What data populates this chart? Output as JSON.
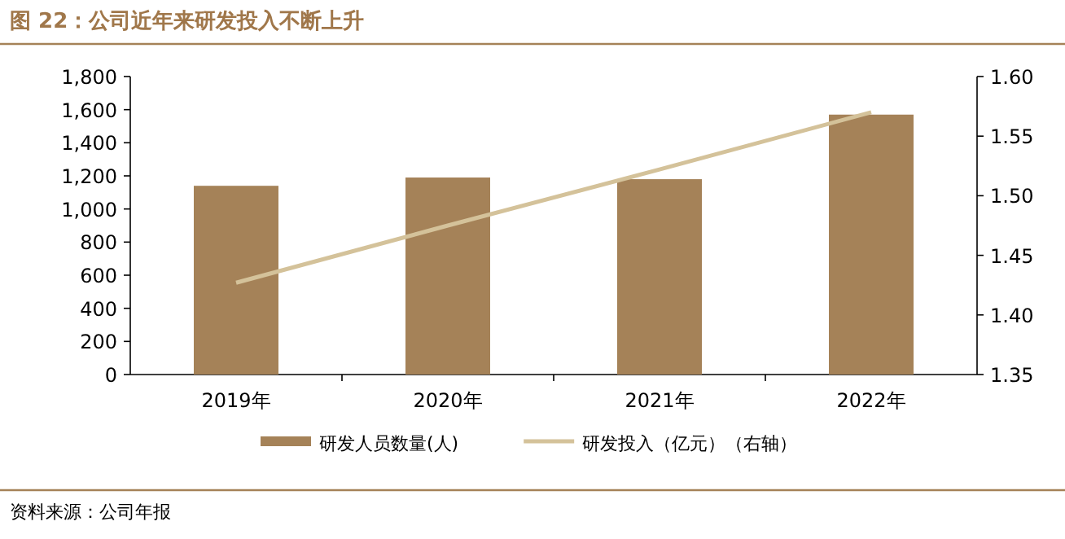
{
  "chart_data": {
    "type": "bar",
    "title": "图 22：公司近年来研发投入不断上升",
    "categories": [
      "2019年",
      "2020年",
      "2021年",
      "2022年"
    ],
    "series": [
      {
        "name": "研发人员数量(人)",
        "color": "#a58258",
        "values": [
          1140,
          1190,
          1180,
          1570
        ]
      },
      {
        "name": "研发投入（亿元）（右轴）",
        "type": "line",
        "color": "#d4c29a",
        "axis": "y2",
        "values": [
          1.427,
          1.475,
          1.522,
          1.57
        ]
      }
    ],
    "ylim": [
      0,
      1800
    ],
    "yticks": [
      {
        "value": 0,
        "label": "0"
      },
      {
        "value": 200,
        "label": "200"
      },
      {
        "value": 400,
        "label": "400"
      },
      {
        "value": 600,
        "label": "600"
      },
      {
        "value": 800,
        "label": "800"
      },
      {
        "value": 1000,
        "label": "1,000"
      },
      {
        "value": 1200,
        "label": "1,200"
      },
      {
        "value": 1400,
        "label": "1,400"
      },
      {
        "value": 1600,
        "label": "1,600"
      },
      {
        "value": 1800,
        "label": "1,800"
      }
    ],
    "y2lim": [
      1.35,
      1.6
    ],
    "y2ticks": [
      {
        "value": 1.35,
        "label": "1.35"
      },
      {
        "value": 1.4,
        "label": "1.40"
      },
      {
        "value": 1.45,
        "label": "1.45"
      },
      {
        "value": 1.5,
        "label": "1.50"
      },
      {
        "value": 1.55,
        "label": "1.55"
      },
      {
        "value": 1.6,
        "label": "1.60"
      }
    ],
    "grid": false,
    "legend": "bottom",
    "marker": "none",
    "annotations": [
      "资料来源：公司年报"
    ]
  }
}
